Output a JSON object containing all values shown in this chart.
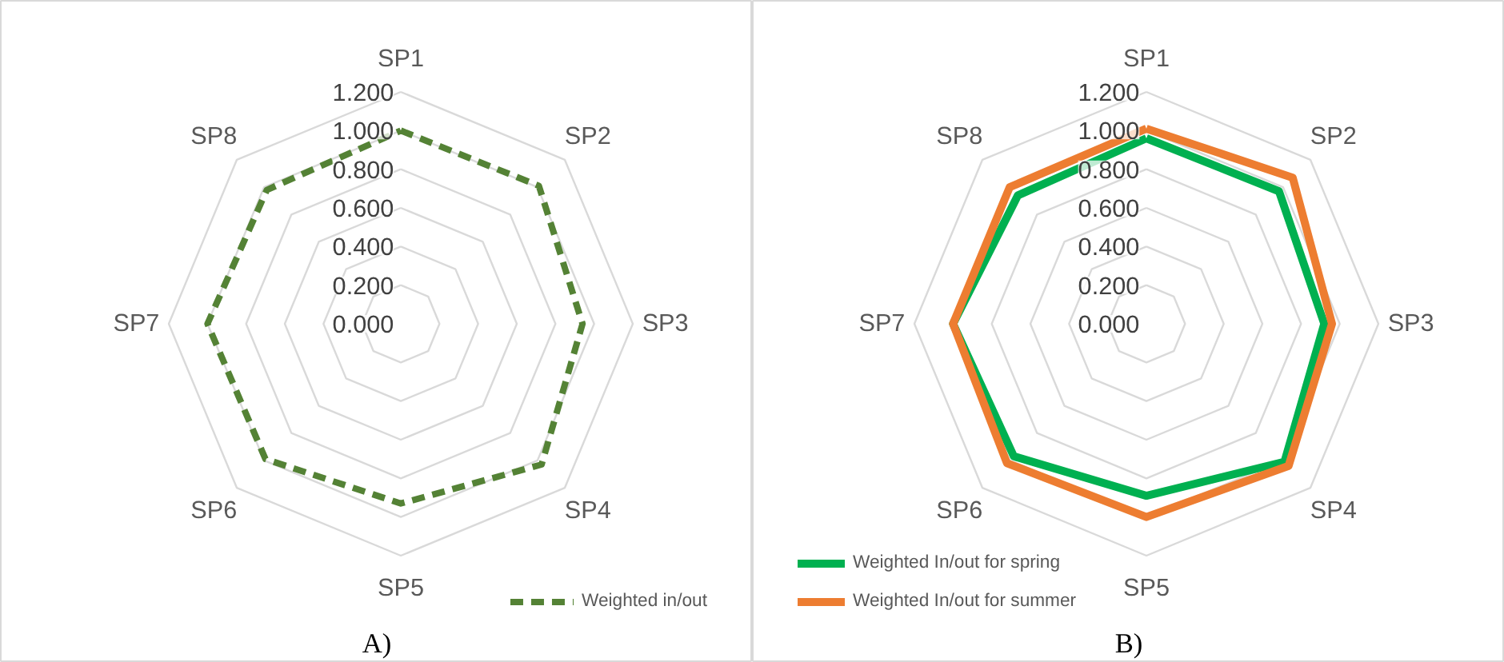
{
  "chart_data": [
    {
      "type": "radar",
      "categories": [
        "SP1",
        "SP2",
        "SP3",
        "SP4",
        "SP5",
        "SP6",
        "SP7",
        "SP8"
      ],
      "series": [
        {
          "name": "Weighted in/out",
          "color": "#548235",
          "values": [
            1.0,
            1.01,
            0.94,
            1.03,
            0.93,
            0.99,
            1.0,
            0.98
          ]
        }
      ],
      "ylim": [
        0,
        1.2
      ],
      "yticks": [
        {
          "value": 0,
          "label": "0.000"
        },
        {
          "value": 0.2,
          "label": "0.200"
        },
        {
          "value": 0.4,
          "label": "0.400"
        },
        {
          "value": 0.6,
          "label": "0.600"
        },
        {
          "value": 0.8,
          "label": "0.800"
        },
        {
          "value": 1.0,
          "label": "1.000"
        },
        {
          "value": 1.2,
          "label": "1.200"
        }
      ],
      "grid": true,
      "legend": "bottom right",
      "line_style": "dashed",
      "annotations": [
        "A)"
      ]
    },
    {
      "type": "radar",
      "categories": [
        "SP1",
        "SP2",
        "SP3",
        "SP4",
        "SP5",
        "SP6",
        "SP7",
        "SP8"
      ],
      "series": [
        {
          "name": "Weighted In/out for spring",
          "color": "#00b050",
          "values": [
            0.96,
            0.97,
            0.92,
            1.01,
            0.89,
            0.97,
            1.0,
            0.94
          ]
        },
        {
          "name": "Weighted In/out for summer",
          "color": "#ed7d31",
          "values": [
            1.01,
            1.07,
            0.96,
            1.04,
            1.0,
            1.02,
            1.0,
            1.0
          ]
        }
      ],
      "ylim": [
        0,
        1.2
      ],
      "yticks": [
        {
          "value": 0,
          "label": "0.000"
        },
        {
          "value": 0.2,
          "label": "0.200"
        },
        {
          "value": 0.4,
          "label": "0.400"
        },
        {
          "value": 0.6,
          "label": "0.600"
        },
        {
          "value": 0.8,
          "label": "0.800"
        },
        {
          "value": 1.0,
          "label": "1.000"
        },
        {
          "value": 1.2,
          "label": "1.200"
        }
      ],
      "grid": true,
      "legend": "bottom left",
      "line_style": "solid",
      "annotations": [
        "B)"
      ]
    }
  ]
}
